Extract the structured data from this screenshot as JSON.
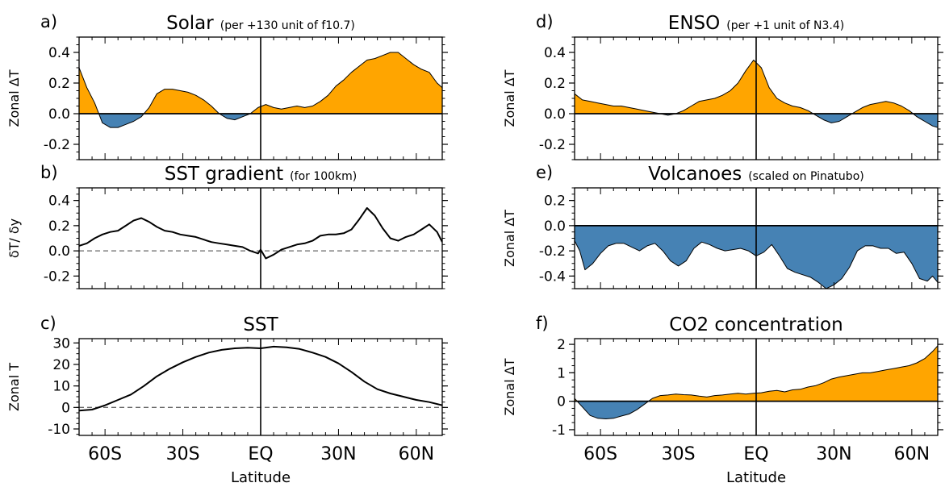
{
  "colors": {
    "positive": "#FFA500",
    "negative": "#4682B4",
    "line": "#000000",
    "zero_dashed": "#666666"
  },
  "x_axis": {
    "label": "Latitude",
    "ticks": [
      -60,
      -30,
      0,
      30,
      60
    ],
    "tick_labels": [
      "60S",
      "30S",
      "EQ",
      "30N",
      "60N"
    ]
  },
  "chart_data": [
    {
      "panel": "a)",
      "type": "area",
      "title": "Solar",
      "subtitle": "(per +130 unit of f10.7)",
      "xlabel": "",
      "ylabel": "Zonal ΔT",
      "xlim": [
        -70,
        70
      ],
      "ylim": [
        -0.3,
        0.5
      ],
      "yticks": [
        -0.2,
        0.0,
        0.2,
        0.4
      ],
      "ytick_labels": [
        "-0.2",
        "0.0",
        "0.2",
        "0.4"
      ],
      "baseline": 0,
      "fill": "signed",
      "x": [
        -70,
        -67,
        -64,
        -61,
        -58,
        -55,
        -52,
        -49,
        -46,
        -43,
        -40,
        -37,
        -34,
        -31,
        -28,
        -25,
        -22,
        -19,
        -16,
        -13,
        -10,
        -7,
        -4,
        -1,
        2,
        5,
        8,
        11,
        14,
        17,
        20,
        23,
        26,
        29,
        32,
        35,
        38,
        41,
        44,
        47,
        50,
        53,
        56,
        59,
        62,
        65,
        68,
        70
      ],
      "y": [
        0.3,
        0.17,
        0.07,
        -0.06,
        -0.09,
        -0.09,
        -0.07,
        -0.05,
        -0.02,
        0.04,
        0.13,
        0.16,
        0.16,
        0.15,
        0.14,
        0.12,
        0.09,
        0.05,
        0.0,
        -0.03,
        -0.04,
        -0.02,
        0.0,
        0.04,
        0.06,
        0.04,
        0.03,
        0.04,
        0.05,
        0.04,
        0.05,
        0.08,
        0.12,
        0.18,
        0.22,
        0.27,
        0.31,
        0.35,
        0.36,
        0.38,
        0.4,
        0.4,
        0.36,
        0.32,
        0.29,
        0.27,
        0.2,
        0.17
      ]
    },
    {
      "panel": "b)",
      "type": "line",
      "title": "SST gradient",
      "subtitle": "(for 100km)",
      "xlabel": "",
      "ylabel": "δT/ δy",
      "xlim": [
        -70,
        70
      ],
      "ylim": [
        -0.3,
        0.5
      ],
      "yticks": [
        -0.2,
        0.0,
        0.2,
        0.4
      ],
      "ytick_labels": [
        "-0.2",
        "0.0",
        "0.2",
        "0.4"
      ],
      "baseline": 0,
      "fill": "none",
      "x": [
        -70,
        -67,
        -64,
        -61,
        -58,
        -55,
        -52,
        -49,
        -46,
        -43,
        -40,
        -37,
        -34,
        -31,
        -28,
        -25,
        -22,
        -19,
        -16,
        -13,
        -10,
        -7,
        -4,
        -1,
        0,
        2,
        5,
        8,
        11,
        14,
        17,
        20,
        23,
        26,
        29,
        32,
        35,
        38,
        41,
        44,
        47,
        50,
        53,
        56,
        59,
        62,
        65,
        68,
        70
      ],
      "y": [
        0.04,
        0.06,
        0.1,
        0.13,
        0.15,
        0.16,
        0.2,
        0.24,
        0.26,
        0.23,
        0.19,
        0.16,
        0.15,
        0.13,
        0.12,
        0.11,
        0.09,
        0.07,
        0.06,
        0.05,
        0.04,
        0.03,
        0.0,
        -0.02,
        0.01,
        -0.06,
        -0.03,
        0.01,
        0.03,
        0.05,
        0.06,
        0.08,
        0.12,
        0.13,
        0.13,
        0.14,
        0.17,
        0.25,
        0.34,
        0.28,
        0.18,
        0.1,
        0.08,
        0.11,
        0.13,
        0.17,
        0.21,
        0.15,
        0.07
      ]
    },
    {
      "panel": "c)",
      "type": "line",
      "title": "SST",
      "subtitle": "",
      "xlabel": "Latitude",
      "ylabel": "Zonal T",
      "xlim": [
        -70,
        70
      ],
      "ylim": [
        -13,
        32
      ],
      "yticks": [
        -10,
        0,
        10,
        20,
        30
      ],
      "ytick_labels": [
        "-10",
        "0",
        "10",
        "20",
        "30"
      ],
      "baseline": 0,
      "fill": "none",
      "x": [
        -70,
        -65,
        -60,
        -55,
        -50,
        -45,
        -40,
        -35,
        -30,
        -25,
        -20,
        -15,
        -10,
        -5,
        0,
        5,
        10,
        15,
        20,
        25,
        30,
        35,
        40,
        45,
        50,
        55,
        60,
        65,
        70
      ],
      "y": [
        -1.5,
        -1,
        1,
        3.5,
        6,
        10,
        14.5,
        18,
        21,
        23.5,
        25.5,
        26.8,
        27.5,
        27.8,
        27.5,
        28.3,
        28,
        27.2,
        25.5,
        23.5,
        20.5,
        16.5,
        12,
        8.5,
        6.5,
        5,
        3.5,
        2.5,
        1
      ]
    },
    {
      "panel": "d)",
      "type": "area",
      "title": "ENSO",
      "subtitle": "(per +1 unit of N3.4)",
      "xlabel": "",
      "ylabel": "Zonal ΔT",
      "xlim": [
        -70,
        70
      ],
      "ylim": [
        -0.3,
        0.5
      ],
      "yticks": [
        -0.2,
        0.0,
        0.2,
        0.4
      ],
      "ytick_labels": [
        "-0.2",
        "0.0",
        "0.2",
        "0.4"
      ],
      "baseline": 0,
      "fill": "signed",
      "x": [
        -70,
        -67,
        -64,
        -61,
        -58,
        -55,
        -52,
        -49,
        -46,
        -43,
        -40,
        -37,
        -34,
        -31,
        -28,
        -25,
        -22,
        -19,
        -16,
        -13,
        -10,
        -7,
        -4,
        -1,
        2,
        5,
        8,
        11,
        14,
        17,
        20,
        23,
        26,
        29,
        32,
        35,
        38,
        41,
        44,
        47,
        50,
        53,
        56,
        59,
        62,
        65,
        68,
        70
      ],
      "y": [
        0.13,
        0.09,
        0.08,
        0.07,
        0.06,
        0.05,
        0.05,
        0.04,
        0.03,
        0.02,
        0.01,
        0.0,
        -0.01,
        0.0,
        0.02,
        0.05,
        0.08,
        0.09,
        0.1,
        0.12,
        0.15,
        0.2,
        0.28,
        0.35,
        0.3,
        0.17,
        0.1,
        0.07,
        0.05,
        0.04,
        0.02,
        -0.01,
        -0.04,
        -0.06,
        -0.05,
        -0.02,
        0.01,
        0.04,
        0.06,
        0.07,
        0.08,
        0.07,
        0.05,
        0.02,
        -0.02,
        -0.05,
        -0.08,
        -0.09
      ]
    },
    {
      "panel": "e)",
      "type": "area",
      "title": "Volcanoes",
      "subtitle": "(scaled on Pinatubo)",
      "xlabel": "",
      "ylabel": "Zonal ΔT",
      "xlim": [
        -70,
        70
      ],
      "ylim": [
        -0.5,
        0.3
      ],
      "yticks": [
        -0.4,
        -0.2,
        0.0,
        0.2
      ],
      "ytick_labels": [
        "-0.4",
        "-0.2",
        "0.0",
        "0.2"
      ],
      "baseline": 0,
      "fill": "signed",
      "x": [
        -70,
        -68,
        -66,
        -63,
        -60,
        -57,
        -54,
        -51,
        -48,
        -45,
        -42,
        -39,
        -36,
        -33,
        -30,
        -27,
        -24,
        -21,
        -18,
        -15,
        -12,
        -9,
        -6,
        -3,
        0,
        3,
        6,
        9,
        12,
        15,
        18,
        21,
        24,
        27,
        30,
        33,
        36,
        39,
        42,
        45,
        48,
        51,
        54,
        57,
        60,
        63,
        66,
        68,
        70
      ],
      "y": [
        -0.12,
        -0.2,
        -0.35,
        -0.3,
        -0.22,
        -0.16,
        -0.14,
        -0.14,
        -0.17,
        -0.2,
        -0.16,
        -0.14,
        -0.2,
        -0.28,
        -0.32,
        -0.28,
        -0.18,
        -0.13,
        -0.15,
        -0.18,
        -0.2,
        -0.19,
        -0.18,
        -0.2,
        -0.24,
        -0.21,
        -0.15,
        -0.24,
        -0.34,
        -0.37,
        -0.39,
        -0.41,
        -0.45,
        -0.5,
        -0.47,
        -0.42,
        -0.33,
        -0.2,
        -0.16,
        -0.16,
        -0.18,
        -0.18,
        -0.22,
        -0.21,
        -0.3,
        -0.42,
        -0.44,
        -0.4,
        -0.45
      ]
    },
    {
      "panel": "f)",
      "type": "area",
      "title": "CO2 concentration",
      "subtitle": "",
      "xlabel": "Latitude",
      "ylabel": "Zonal ΔT",
      "xlim": [
        -70,
        70
      ],
      "ylim": [
        -1.2,
        2.2
      ],
      "yticks": [
        -1,
        0,
        1,
        2
      ],
      "ytick_labels": [
        "-1",
        "0",
        "1",
        "2"
      ],
      "baseline": 0,
      "fill": "signed",
      "x": [
        -70,
        -67,
        -64,
        -61,
        -58,
        -55,
        -52,
        -49,
        -46,
        -43,
        -40,
        -37,
        -34,
        -31,
        -28,
        -25,
        -22,
        -19,
        -16,
        -13,
        -10,
        -7,
        -4,
        -1,
        2,
        5,
        8,
        11,
        14,
        17,
        20,
        23,
        26,
        29,
        32,
        35,
        38,
        41,
        44,
        47,
        50,
        53,
        56,
        59,
        62,
        65,
        68,
        70
      ],
      "y": [
        0.1,
        -0.2,
        -0.5,
        -0.6,
        -0.62,
        -0.6,
        -0.52,
        -0.45,
        -0.3,
        -0.1,
        0.1,
        0.2,
        0.22,
        0.25,
        0.23,
        0.22,
        0.18,
        0.15,
        0.2,
        0.22,
        0.25,
        0.28,
        0.25,
        0.28,
        0.3,
        0.35,
        0.38,
        0.33,
        0.4,
        0.42,
        0.5,
        0.55,
        0.65,
        0.78,
        0.85,
        0.9,
        0.95,
        1.0,
        1.0,
        1.05,
        1.1,
        1.15,
        1.2,
        1.25,
        1.35,
        1.5,
        1.75,
        1.95
      ]
    }
  ]
}
